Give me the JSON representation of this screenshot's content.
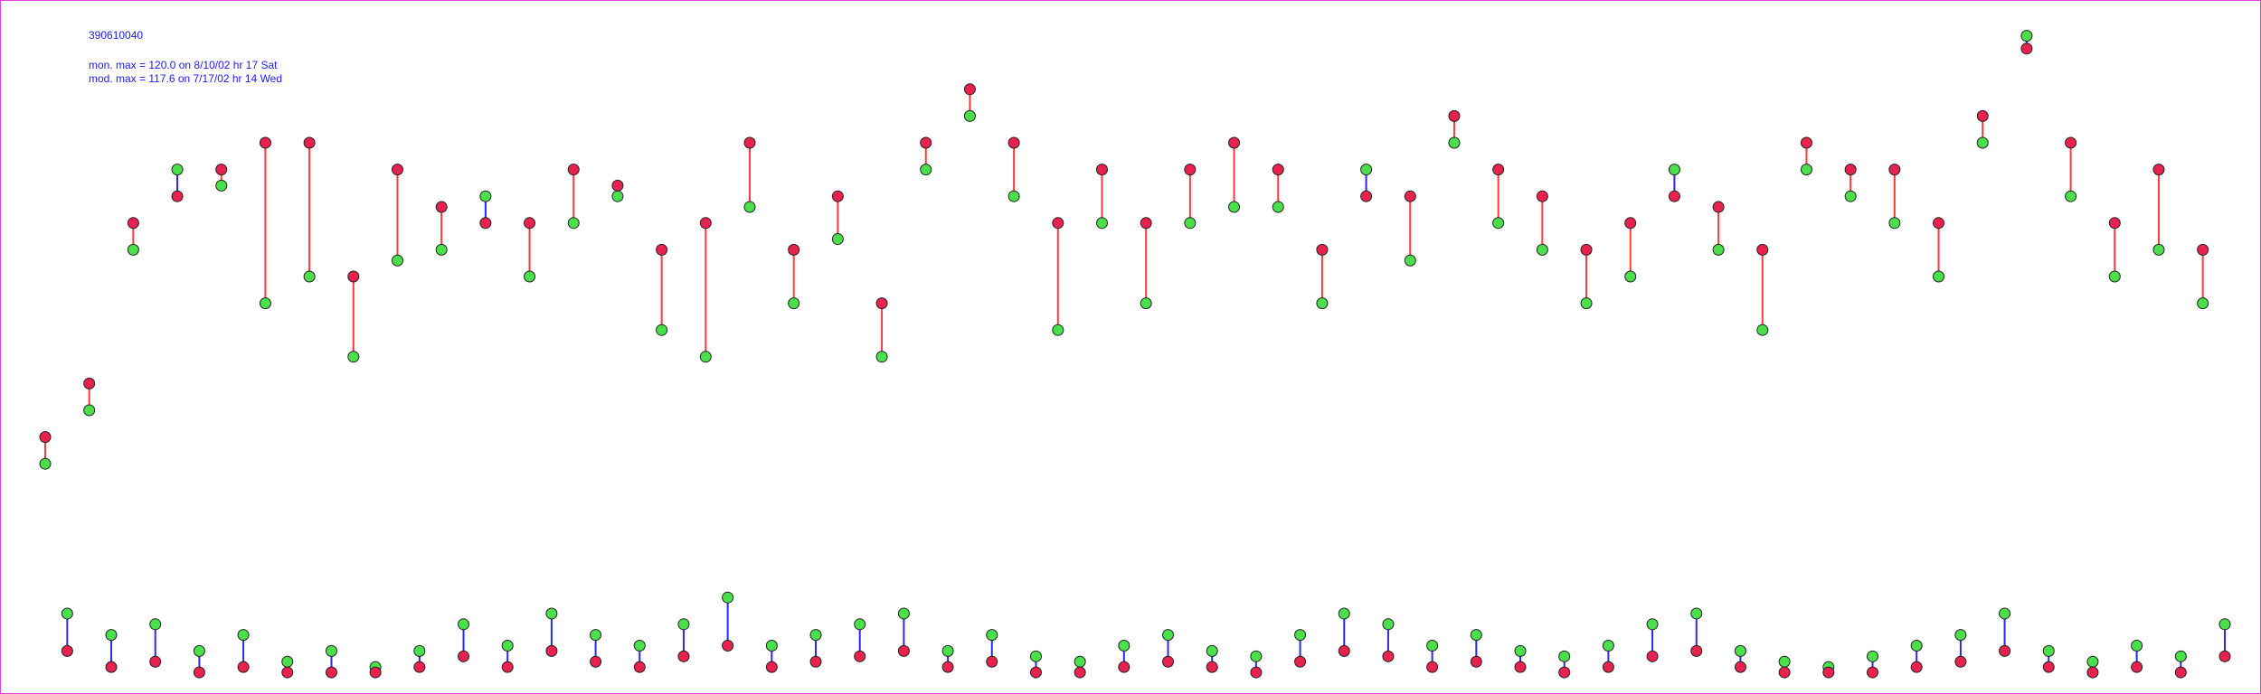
{
  "chart_data": {
    "type": "paired-scatter",
    "title": "390610040",
    "annotations": [
      "mon. max =  120.0 on 8/10/02 hr 17 Sat",
      "mod. max =  117.6 on 7/17/02 hr 14 Wed"
    ],
    "ylim": [
      0,
      125
    ],
    "over_color": "#ff3b3b",
    "under_color": "#2a2ae8",
    "series": [
      {
        "color": "#4be04b",
        "values": [
          40,
          12,
          50,
          8,
          80,
          10,
          95,
          5,
          92,
          8,
          70,
          3,
          75,
          5,
          60,
          2,
          78,
          5,
          80,
          10,
          90,
          6,
          75,
          12,
          85,
          8,
          90,
          6,
          65,
          10,
          60,
          15,
          88,
          6,
          70,
          8,
          82,
          10,
          60,
          12,
          95,
          5,
          105,
          8,
          90,
          4,
          65,
          3,
          85,
          6,
          70,
          8,
          85,
          5,
          88,
          4,
          88,
          8,
          70,
          12,
          95,
          10,
          78,
          6,
          100,
          8,
          85,
          5,
          80,
          4,
          70,
          6,
          75,
          10,
          95,
          12,
          80,
          5,
          65,
          3,
          95,
          2,
          90,
          4,
          85,
          6,
          75,
          8,
          100,
          12,
          120,
          5,
          90,
          3,
          75,
          6,
          80,
          4,
          70,
          10
        ]
      },
      {
        "color": "#e8224e",
        "values": [
          45,
          5,
          55,
          2,
          85,
          3,
          90,
          1,
          95,
          2,
          100,
          1,
          100,
          1,
          75,
          1,
          95,
          2,
          88,
          4,
          85,
          2,
          85,
          5,
          95,
          3,
          92,
          2,
          80,
          4,
          85,
          6,
          100,
          2,
          80,
          3,
          90,
          4,
          70,
          5,
          100,
          2,
          110,
          3,
          100,
          1,
          85,
          1,
          95,
          2,
          85,
          3,
          95,
          2,
          100,
          1,
          95,
          3,
          80,
          5,
          90,
          4,
          90,
          2,
          105,
          3,
          95,
          2,
          90,
          1,
          80,
          2,
          85,
          4,
          90,
          5,
          88,
          2,
          80,
          1,
          100,
          1,
          95,
          1,
          95,
          2,
          85,
          3,
          105,
          5,
          117.6,
          2,
          100,
          1,
          85,
          2,
          95,
          1,
          80,
          4
        ]
      }
    ]
  }
}
